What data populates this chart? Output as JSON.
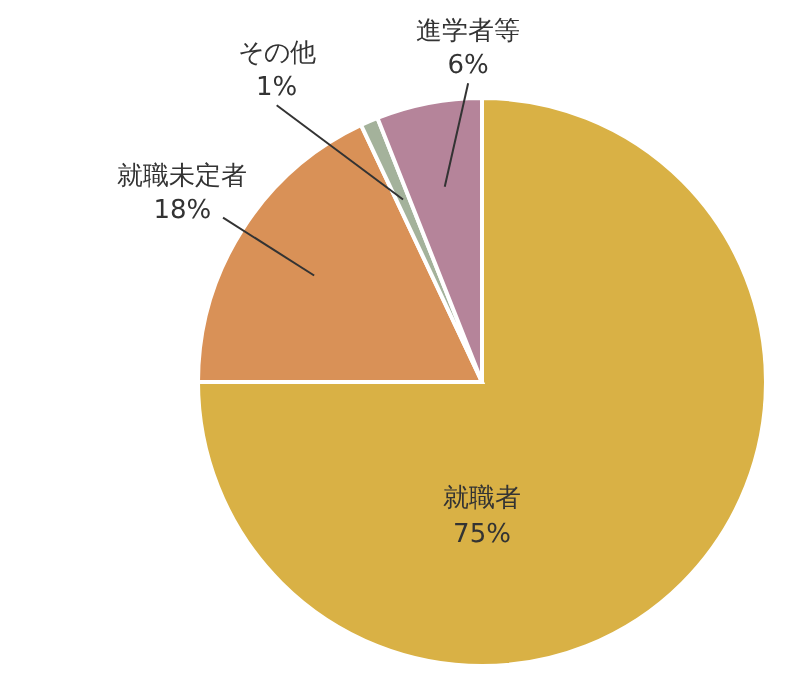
{
  "chart_data": {
    "type": "pie",
    "categories": [
      "就職者",
      "就職未定者",
      "その他",
      "進学者等"
    ],
    "values": [
      75,
      18,
      1,
      6
    ],
    "value_labels": [
      "75%",
      "18%",
      "1%",
      "6%"
    ],
    "colors": [
      "#d9b145",
      "#d99157",
      "#a4b29b",
      "#b5849a"
    ]
  }
}
